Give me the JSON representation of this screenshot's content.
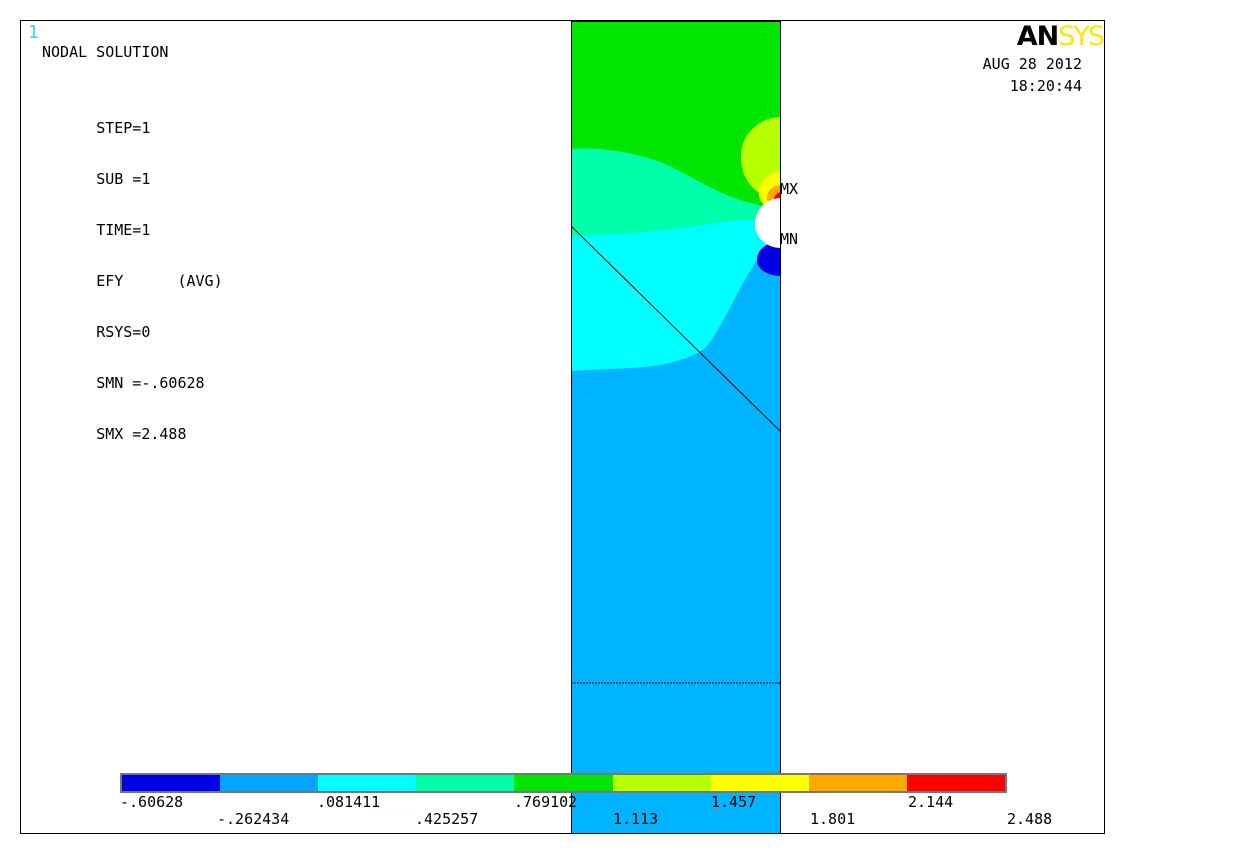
{
  "window": {
    "number": "1",
    "logo_an": "AN",
    "logo_sys": "SYS"
  },
  "info": {
    "title": "NODAL SOLUTION",
    "rows": [
      {
        "label": "STEP=",
        "value": "1"
      },
      {
        "label": "SUB =",
        "value": "1"
      },
      {
        "label": "TIME=",
        "value": "1"
      },
      {
        "label": "EFY      ",
        "value": "(AVG)"
      },
      {
        "label": "RSYS=",
        "value": "0"
      },
      {
        "label": "SMN =",
        "value": "-.60628"
      },
      {
        "label": "SMX =",
        "value": "2.488"
      }
    ],
    "date": "AUG 28 2012",
    "time": "18:20:44"
  },
  "markers": {
    "max_label": "MX",
    "min_label": "MN"
  },
  "legend": {
    "colors": [
      "#0000e6",
      "#00a6ff",
      "#00ffff",
      "#00ffa8",
      "#00e600",
      "#b8ff00",
      "#ffff00",
      "#ffa800",
      "#ff0000"
    ],
    "upper_labels": [
      "-.60628",
      ".081411",
      ".769102",
      "1.457",
      "2.144"
    ],
    "lower_labels": [
      "-.262434",
      ".425257",
      "1.113",
      "1.801",
      "2.488"
    ]
  },
  "plot": {
    "colors": {
      "green": "#00e600",
      "teal": "#00ffa8",
      "cyan": "#00ffff",
      "blue": "#00b4ff",
      "dark_blue": "#0000e6",
      "lime": "#b8ff00",
      "yellow": "#ffff00",
      "orange": "#ffa800",
      "red": "#ff0000"
    }
  }
}
